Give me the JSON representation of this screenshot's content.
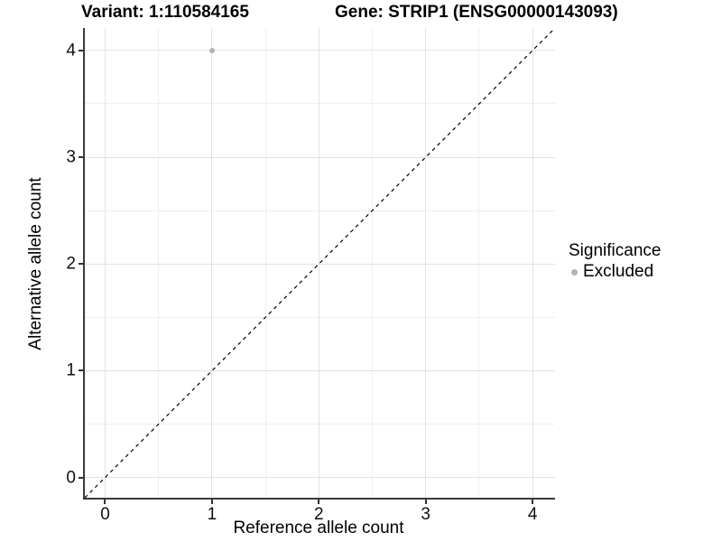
{
  "chart_data": {
    "type": "scatter",
    "title_variant": "Variant: 1:110584165",
    "title_gene": "Gene: STRIP1 (ENSG00000143093)",
    "xlabel": "Reference allele count",
    "ylabel": "Alternative allele count",
    "xlim": [
      -0.19,
      4.21
    ],
    "ylim": [
      -0.19,
      4.21
    ],
    "x_ticks": [
      0,
      1,
      2,
      3,
      4
    ],
    "y_ticks": [
      0,
      1,
      2,
      3,
      4
    ],
    "x_minor": [
      0.5,
      1.5,
      2.5,
      3.5
    ],
    "y_minor": [
      0.5,
      1.5,
      2.5,
      3.5
    ],
    "grid": true,
    "points": [
      {
        "x": 1,
        "y": 4,
        "series": "Excluded",
        "color": "#b3b3b3",
        "size": 6
      }
    ],
    "reference_line": {
      "slope": 1,
      "intercept": 0,
      "style": "dashed",
      "color": "#000000",
      "dash": [
        4,
        4
      ],
      "width": 1.2
    },
    "legend": {
      "title": "Significance",
      "position": "right",
      "items": [
        {
          "label": "Excluded",
          "color": "#b3b3b3"
        }
      ]
    },
    "colors": {
      "major_grid": "#e2e2e2",
      "minor_grid": "#efefef",
      "axis_line": "#3a3a3a",
      "tick_mark": "#333333",
      "tick_label": "#111111",
      "background": "#ffffff"
    }
  }
}
